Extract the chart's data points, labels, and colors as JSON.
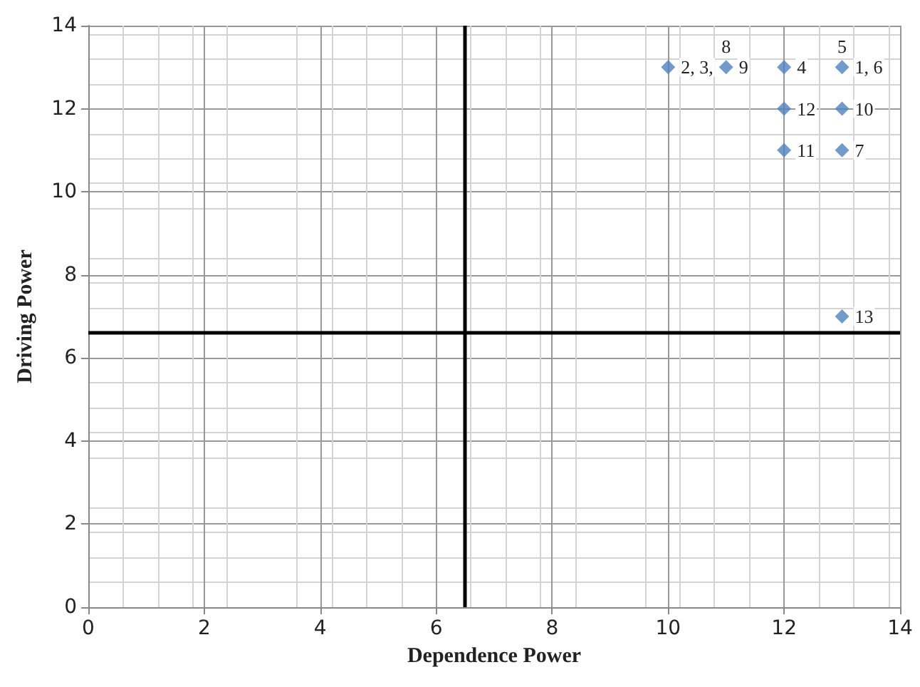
{
  "chart_data": {
    "type": "scatter",
    "xlabel": "Dependence Power",
    "ylabel": "Driving Power",
    "x": [
      10,
      11,
      12,
      13,
      12,
      13,
      12,
      13,
      13
    ],
    "values": [
      13,
      13,
      13,
      13,
      12,
      12,
      11,
      11,
      7
    ],
    "annotations": [
      {
        "text": "2, 3,",
        "x": 10,
        "y": 13
      },
      {
        "text": "8",
        "x": 11,
        "y": 13
      },
      {
        "text": "9",
        "x": 11,
        "y": 13
      },
      {
        "text": "4",
        "x": 12,
        "y": 13
      },
      {
        "text": "5",
        "x": 13,
        "y": 13
      },
      {
        "text": "1, 6",
        "x": 13,
        "y": 13
      },
      {
        "text": "12",
        "x": 12,
        "y": 12
      },
      {
        "text": "10",
        "x": 13,
        "y": 12
      },
      {
        "text": "11",
        "x": 12,
        "y": 11
      },
      {
        "text": "7",
        "x": 13,
        "y": 11
      },
      {
        "text": "13",
        "x": 13,
        "y": 7
      }
    ],
    "color": "#4f81bd",
    "marker": "diamond",
    "xlim": [
      0,
      14
    ],
    "xticks": [
      0,
      2,
      4,
      6,
      8,
      10,
      12,
      14
    ],
    "ylim": [
      0,
      14
    ],
    "yticks": [
      0,
      2,
      4,
      6,
      8,
      10,
      12,
      14
    ],
    "grid": true,
    "ref_lines": [
      {
        "axis": "x",
        "value": 6.5,
        "color": "#000000"
      },
      {
        "axis": "y",
        "value": 6.6,
        "color": "#000000"
      }
    ]
  }
}
